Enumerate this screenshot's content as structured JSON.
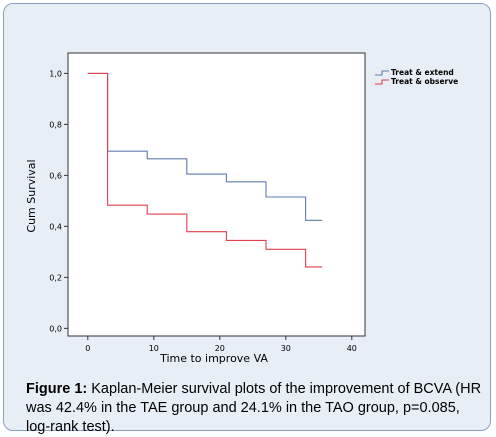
{
  "chart_data": {
    "type": "line",
    "step": true,
    "title": "",
    "xlabel": "Time to improve VA",
    "ylabel": "Cum Survival",
    "xlim": [
      -3,
      42
    ],
    "ylim": [
      -0.03,
      1.08
    ],
    "x_ticks": [
      0,
      10,
      20,
      30,
      40
    ],
    "y_ticks": [
      0.0,
      0.2,
      0.4,
      0.6,
      0.8,
      1.0
    ],
    "y_tick_labels": [
      "0,0",
      "0,2",
      "0,4",
      "0,6",
      "0,8",
      "1,0"
    ],
    "grid": false,
    "legend_position": "top-right",
    "series": [
      {
        "name": "Treat & extend",
        "color": "#5f7cae",
        "points": [
          [
            0,
            1.0
          ],
          [
            3,
            1.0
          ],
          [
            3,
            0.695
          ],
          [
            9,
            0.695
          ],
          [
            9,
            0.665
          ],
          [
            15,
            0.665
          ],
          [
            15,
            0.605
          ],
          [
            21,
            0.605
          ],
          [
            21,
            0.575
          ],
          [
            27,
            0.575
          ],
          [
            27,
            0.515
          ],
          [
            33,
            0.515
          ],
          [
            33,
            0.424
          ],
          [
            35.5,
            0.424
          ]
        ]
      },
      {
        "name": "Treat & observe",
        "color": "#e0404a",
        "points": [
          [
            0,
            1.0
          ],
          [
            3,
            1.0
          ],
          [
            3,
            0.483
          ],
          [
            9,
            0.483
          ],
          [
            9,
            0.448
          ],
          [
            15,
            0.448
          ],
          [
            15,
            0.379
          ],
          [
            21,
            0.379
          ],
          [
            21,
            0.345
          ],
          [
            27,
            0.345
          ],
          [
            27,
            0.31
          ],
          [
            33,
            0.31
          ],
          [
            33,
            0.241
          ],
          [
            35.5,
            0.241
          ]
        ]
      }
    ]
  },
  "caption": {
    "label": "Figure 1:",
    "text": "Kaplan-Meier survival plots of the improvement of BCVA (HR was 42.4% in the TAE group and 24.1% in the TAO group, p=0.085, log-rank test)."
  }
}
